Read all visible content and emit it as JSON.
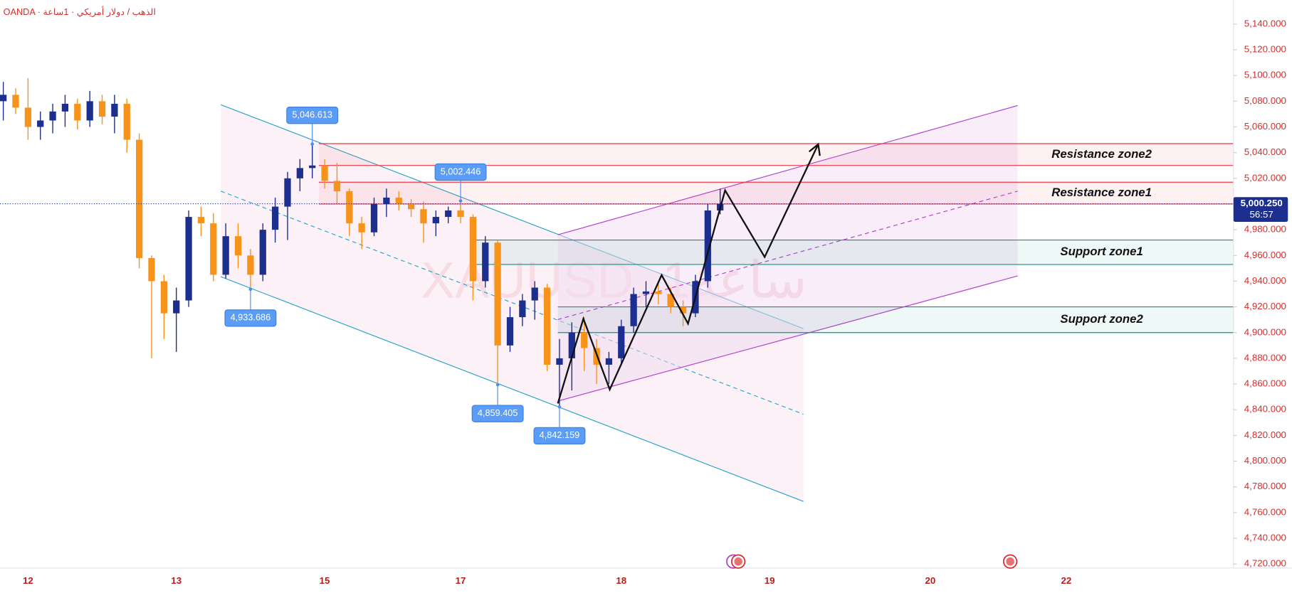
{
  "header": "OANDA · الذهب / دولار أمريكي · 1ساعة",
  "chart_data": {
    "type": "candlestick",
    "watermark": "XAUUSD, 1ساعة",
    "grid": false,
    "up_color": "#1c2f8f",
    "down_color": "#f7931a",
    "categories": [
      null,
      null,
      "12",
      null,
      null,
      null,
      null,
      null,
      null,
      null,
      null,
      null,
      null,
      null,
      "13",
      null,
      null,
      null,
      null,
      null,
      null,
      null,
      null,
      null,
      null,
      null,
      "15",
      null,
      null,
      null,
      null,
      null,
      null,
      null,
      null,
      null,
      null,
      "17",
      null,
      null,
      null,
      null,
      null,
      null,
      null,
      null,
      null,
      null,
      null,
      null,
      "18",
      null,
      null,
      null,
      null,
      null,
      null,
      null,
      null,
      null,
      null,
      null,
      "19",
      null,
      null,
      null,
      null,
      null,
      null,
      null,
      null,
      null,
      null,
      null,
      null,
      "20",
      null,
      null,
      null,
      null,
      null,
      null,
      null,
      null,
      null,
      null,
      "22",
      null,
      null,
      null,
      null,
      null,
      null,
      null,
      null,
      null,
      null,
      null,
      null,
      null
    ],
    "open": [
      5080,
      5085,
      5075,
      5060,
      5065,
      5072,
      5078,
      5065,
      5080,
      5068,
      5078,
      5050,
      4958,
      4940,
      4915,
      4925,
      4990,
      4985,
      4945,
      4975,
      4960,
      4945,
      4980,
      4998,
      5020,
      5028,
      5030,
      5018,
      5010,
      4985,
      4978,
      5000,
      5005,
      5000,
      4996,
      4985,
      4990,
      4995,
      4990,
      4940,
      4970,
      4890,
      4912,
      4925,
      4935,
      4875,
      4880,
      4900,
      4888,
      4875,
      4880,
      4905,
      4930,
      4932,
      4930,
      4920,
      4915,
      4940,
      4995,
      null,
      null,
      null,
      null,
      null,
      null,
      null,
      null,
      null,
      null,
      null,
      null,
      null,
      null,
      null,
      null,
      null,
      null,
      null,
      null,
      null,
      null,
      null,
      null,
      null,
      null,
      null,
      null,
      null,
      null,
      null,
      null,
      null,
      null,
      null,
      null,
      null,
      null,
      null,
      null,
      null
    ],
    "high": [
      5095,
      5090,
      5098,
      5072,
      5078,
      5085,
      5082,
      5088,
      5085,
      5085,
      5082,
      5055,
      4960,
      4945,
      4935,
      4995,
      4998,
      4993,
      4985,
      4985,
      4965,
      4985,
      5005,
      5025,
      5035,
      5046.613,
      5035,
      5032,
      5012,
      4990,
      5005,
      5012,
      5010,
      5004,
      5002,
      4995,
      4998,
      5002.446,
      4992,
      4975,
      4972,
      4920,
      4930,
      4940,
      4938,
      4895,
      4908,
      4912,
      4895,
      4885,
      4910,
      4935,
      4940,
      4940,
      4935,
      4925,
      4945,
      5000,
      5012,
      null,
      null,
      null,
      null,
      null,
      null,
      null,
      null,
      null,
      null,
      null,
      null,
      null,
      null,
      null,
      null,
      null,
      null,
      null,
      null,
      null,
      null,
      null,
      null,
      null,
      null,
      null,
      null,
      null,
      null,
      null,
      null,
      null,
      null,
      null,
      null,
      null,
      null,
      null,
      null,
      null
    ],
    "low": [
      5065,
      5070,
      5050,
      5050,
      5055,
      5060,
      5058,
      5060,
      5062,
      5055,
      5040,
      4950,
      4880,
      4895,
      4885,
      4920,
      4975,
      4940,
      4942,
      4950,
      4933.686,
      4940,
      4970,
      4972,
      5010,
      5020,
      5012,
      5000,
      4975,
      4965,
      4975,
      4990,
      4995,
      4990,
      4970,
      4975,
      4985,
      4985,
      4925,
      4935,
      4859.405,
      4885,
      4905,
      4910,
      4870,
      4842.159,
      4855,
      4870,
      4860,
      4860,
      4875,
      4900,
      4920,
      4922,
      4915,
      4905,
      4912,
      4935,
      4992,
      null,
      null,
      null,
      null,
      null,
      null,
      null,
      null,
      null,
      null,
      null,
      null,
      null,
      null,
      null,
      null,
      null,
      null,
      null,
      null,
      null,
      null,
      null,
      null,
      null,
      null,
      null,
      null,
      null,
      null,
      null,
      null,
      null,
      null,
      null,
      null,
      null,
      null,
      null,
      null,
      null
    ],
    "close": [
      5085,
      5075,
      5060,
      5065,
      5072,
      5078,
      5065,
      5080,
      5068,
      5078,
      5050,
      4958,
      4940,
      4915,
      4925,
      4990,
      4985,
      4945,
      4975,
      4960,
      4945,
      4980,
      4998,
      5020,
      5028,
      5030,
      5018,
      5010,
      4985,
      4978,
      5000,
      5005,
      5000,
      4996,
      4985,
      4990,
      4995,
      4990,
      4940,
      4970,
      4890,
      4912,
      4925,
      4935,
      4875,
      4880,
      4900,
      4888,
      4875,
      4880,
      4905,
      4930,
      4932,
      4930,
      4920,
      4915,
      4940,
      4995,
      5000.25,
      null,
      null,
      null,
      null,
      null,
      null,
      null,
      null,
      null,
      null,
      null,
      null,
      null,
      null,
      null,
      null,
      null,
      null,
      null,
      null,
      null,
      null,
      null,
      null,
      null,
      null,
      null,
      null,
      null,
      null,
      null,
      null,
      null,
      null,
      null,
      null,
      null,
      null,
      null,
      null,
      null
    ],
    "ylim": [
      4720,
      5140
    ],
    "yticks": [
      {
        "value": 5140,
        "label": "5,140.000"
      },
      {
        "value": 5120,
        "label": "5,120.000"
      },
      {
        "value": 5100,
        "label": "5,100.000"
      },
      {
        "value": 5080,
        "label": "5,080.000"
      },
      {
        "value": 5060,
        "label": "5,060.000"
      },
      {
        "value": 5040,
        "label": "5,040.000"
      },
      {
        "value": 5020,
        "label": "5,020.000"
      },
      {
        "value": 5000,
        "label": "5,000.000"
      },
      {
        "value": 4980,
        "label": "4,980.000"
      },
      {
        "value": 4960,
        "label": "4,960.000"
      },
      {
        "value": 4940,
        "label": "4,940.000"
      },
      {
        "value": 4920,
        "label": "4,920.000"
      },
      {
        "value": 4900,
        "label": "4,900.000"
      },
      {
        "value": 4880,
        "label": "4,880.000"
      },
      {
        "value": 4860,
        "label": "4,860.000"
      },
      {
        "value": 4840,
        "label": "4,840.000"
      },
      {
        "value": 4820,
        "label": "4,820.000"
      },
      {
        "value": 4800,
        "label": "4,800.000"
      },
      {
        "value": 4780,
        "label": "4,780.000"
      },
      {
        "value": 4760,
        "label": "4,760.000"
      },
      {
        "value": 4740,
        "label": "4,740.000"
      },
      {
        "value": 4720,
        "label": "4,720.000"
      }
    ],
    "current_price": {
      "value": 5000.25,
      "label": "5,000.250"
    },
    "countdown": "56:57",
    "callouts": [
      {
        "value": 5046.613,
        "label": "5,046.613"
      },
      {
        "value": 5002.446,
        "label": "5,002.446"
      },
      {
        "value": 4933.686,
        "label": "4,933.686"
      },
      {
        "value": 4859.405,
        "label": "4,859.405"
      },
      {
        "value": 4842.159,
        "label": "4,842.159"
      }
    ],
    "zones": [
      {
        "name": "Resistance zone2",
        "from": 5030,
        "to": 5047,
        "color": "#f23645"
      },
      {
        "name": "Resistance zone1",
        "from": 5000,
        "to": 5017,
        "color": "#f23645"
      },
      {
        "name": "Support zone1",
        "from": 4953,
        "to": 4972,
        "color": "#089981"
      },
      {
        "name": "Support zone2",
        "from": 4900,
        "to": 4920,
        "color": "#089981"
      }
    ]
  }
}
